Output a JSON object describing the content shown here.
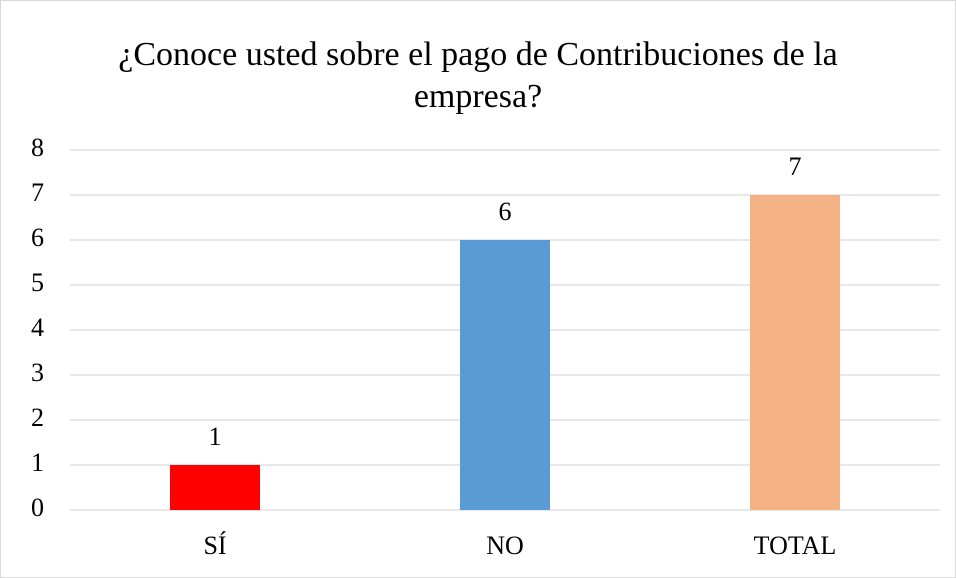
{
  "chart_data": {
    "type": "bar",
    "title": "¿Conoce usted sobre el pago de Contribuciones de la empresa?",
    "categories": [
      "SÍ",
      "NO",
      "TOTAL"
    ],
    "values": [
      1,
      6,
      7
    ],
    "colors": [
      "#ff0000",
      "#5b9bd5",
      "#f4b183"
    ],
    "ylim": [
      0,
      8
    ],
    "yticks": [
      0,
      1,
      2,
      3,
      4,
      5,
      6,
      7,
      8
    ],
    "grid": true
  }
}
